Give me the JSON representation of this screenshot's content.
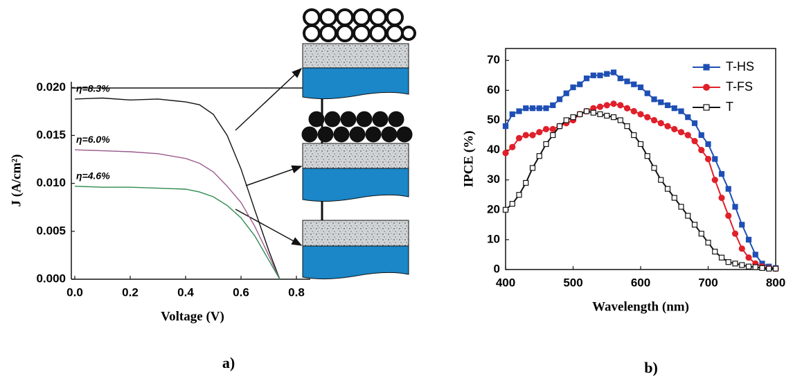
{
  "chart_data": [
    {
      "type": "line",
      "label": "a)",
      "x_label": "Voltage (V)",
      "y_label": "J (A/cm²)",
      "x": [
        0,
        0.1,
        0.2,
        0.3,
        0.4,
        0.45,
        0.5,
        0.55,
        0.6,
        0.65,
        0.7,
        0.74
      ],
      "series": [
        {
          "name": "η=8.3%",
          "color": "#111111",
          "values": [
            0.0188,
            0.0189,
            0.0187,
            0.0188,
            0.0185,
            0.0182,
            0.0172,
            0.015,
            0.0115,
            0.0072,
            0.003,
            0
          ]
        },
        {
          "name": "η=6.0%",
          "color": "#9a5a8c",
          "values": [
            0.0135,
            0.0134,
            0.0133,
            0.0131,
            0.0126,
            0.0121,
            0.0112,
            0.0097,
            0.008,
            0.0055,
            0.0025,
            0
          ]
        },
        {
          "name": "η=4.6%",
          "color": "#2e8b4e",
          "values": [
            0.0097,
            0.0096,
            0.0096,
            0.0095,
            0.0094,
            0.0091,
            0.0086,
            0.0077,
            0.0064,
            0.0045,
            0.002,
            0
          ]
        }
      ],
      "xlim": [
        0,
        0.85
      ],
      "ylim": [
        0,
        0.0206
      ],
      "xticks": [
        {
          "value": 0,
          "label": "0.0"
        },
        {
          "value": 0.2,
          "label": "0.2"
        },
        {
          "value": 0.4,
          "label": "0.4"
        },
        {
          "value": 0.6,
          "label": "0.6"
        },
        {
          "value": 0.8,
          "label": "0.8"
        }
      ],
      "yticks": [
        {
          "value": 0,
          "label": "0.000"
        },
        {
          "value": 0.005,
          "label": "0.005"
        },
        {
          "value": 0.01,
          "label": "0.010"
        },
        {
          "value": 0.015,
          "label": "0.015"
        },
        {
          "value": 0.02,
          "label": "0.020"
        }
      ]
    },
    {
      "type": "line",
      "label": "b)",
      "x_label": "Wavelength (nm)",
      "y_label": "IPCE (%)",
      "legend": "upper right",
      "x": [
        400,
        410,
        420,
        430,
        440,
        450,
        460,
        470,
        480,
        490,
        500,
        510,
        520,
        530,
        540,
        550,
        560,
        570,
        580,
        590,
        600,
        610,
        620,
        630,
        640,
        650,
        660,
        670,
        680,
        690,
        700,
        710,
        720,
        730,
        740,
        750,
        760,
        770,
        780,
        790,
        800
      ],
      "series": [
        {
          "name": "T-HS",
          "color": "#1f4fb4",
          "marker": "square",
          "marker_fill": "#1f4fb4",
          "values": [
            48,
            52,
            53,
            54,
            54,
            54,
            54,
            55,
            57,
            59,
            61,
            62,
            64,
            65,
            65,
            65.5,
            66,
            64,
            63,
            62,
            61,
            59,
            57,
            56,
            55,
            54,
            53,
            51,
            49,
            45,
            42,
            37,
            32,
            27,
            21,
            15,
            10,
            5,
            2,
            1,
            0.5
          ]
        },
        {
          "name": "T-FS",
          "color": "#e0202a",
          "marker": "circle",
          "marker_fill": "#e0202a",
          "values": [
            39,
            41,
            44,
            45,
            45,
            46,
            47,
            47,
            48,
            49,
            50,
            52,
            53,
            54,
            54.5,
            55,
            55.5,
            55,
            54,
            53,
            52,
            51,
            50,
            49,
            48,
            47,
            46,
            45,
            43,
            40,
            37,
            30,
            24,
            18,
            12,
            7,
            4,
            2,
            1,
            0.5,
            0.3
          ]
        },
        {
          "name": "T",
          "color": "#111111",
          "marker": "square",
          "marker_fill": "#ffffff",
          "values": [
            20,
            22,
            25,
            29,
            34,
            38,
            42,
            45,
            48,
            50,
            51,
            52,
            53,
            52.5,
            52,
            51.5,
            51,
            50,
            48,
            45,
            42,
            38,
            34,
            30,
            27,
            24,
            21,
            18,
            15,
            12,
            9,
            6,
            4,
            2.5,
            2,
            1.5,
            1,
            0.8,
            0.5,
            0.3,
            0.3
          ]
        }
      ],
      "xlim": [
        400,
        800
      ],
      "ylim": [
        0,
        74
      ],
      "xticks": [
        400,
        500,
        600,
        700,
        800
      ],
      "yticks": [
        0,
        10,
        20,
        30,
        40,
        50,
        60,
        70
      ]
    }
  ]
}
